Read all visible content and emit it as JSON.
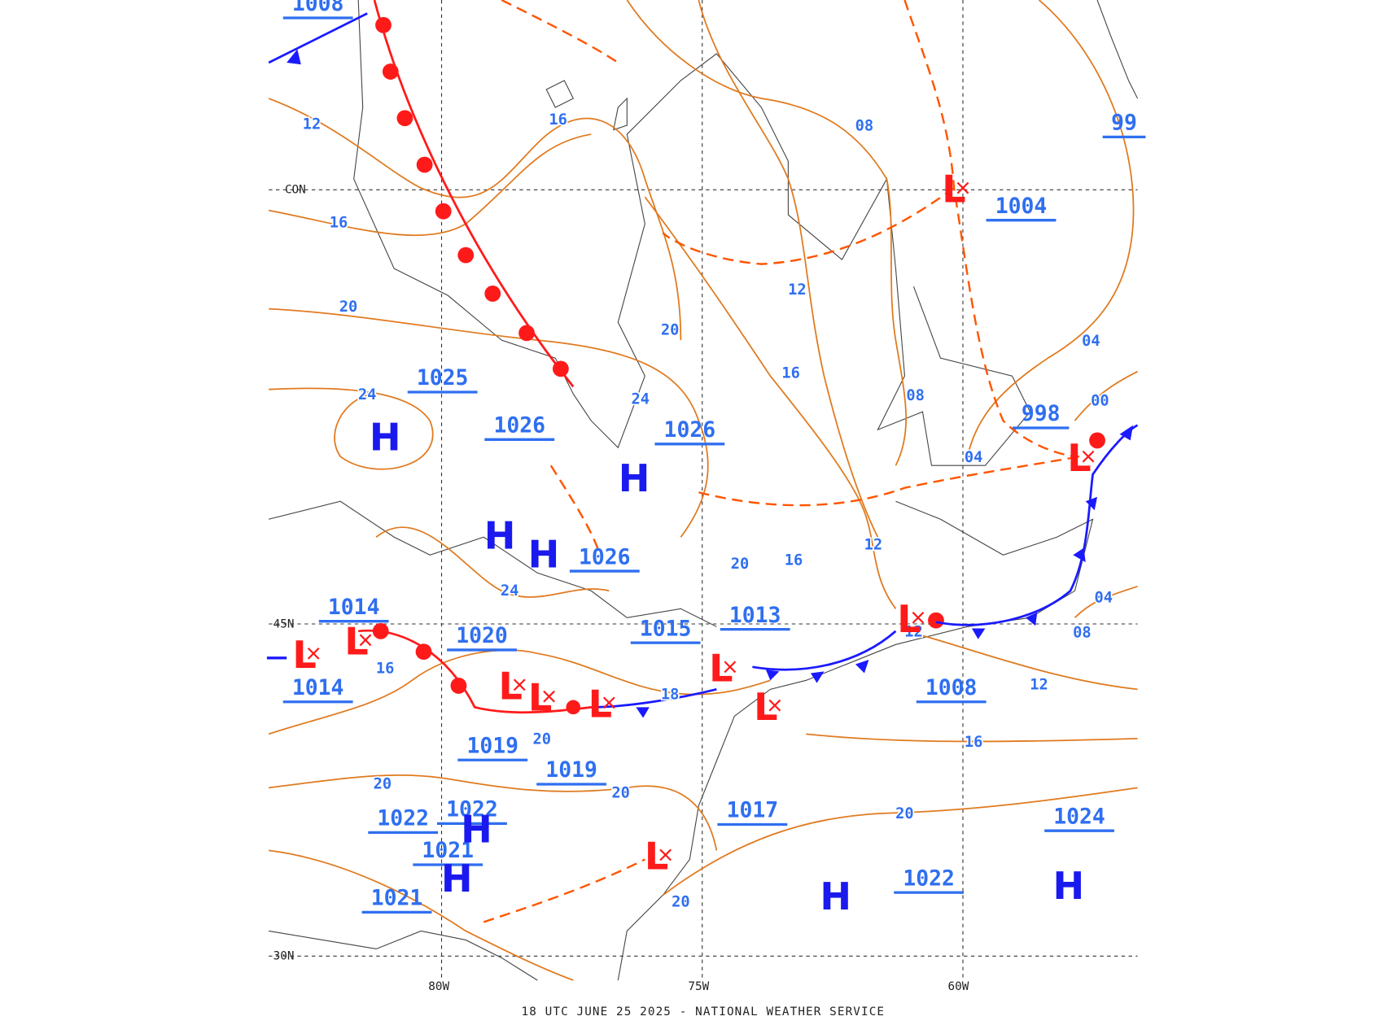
{
  "map": {
    "pressure_labels": [
      "1008",
      "1004",
      "998",
      "1025",
      "1026",
      "1026",
      "1026",
      "1014",
      "1014",
      "1020",
      "1015",
      "1013",
      "1008",
      "1019",
      "1019",
      "1022",
      "1022",
      "1021",
      "1021",
      "1017",
      "1024",
      "1022",
      "99"
    ],
    "isobar_labels": [
      "12",
      "16",
      "16",
      "20",
      "24",
      "08",
      "12",
      "20",
      "24",
      "16",
      "08",
      "04",
      "00",
      "04",
      "12",
      "16",
      "20",
      "24",
      "16",
      "18",
      "12",
      "08",
      "04",
      "12",
      "16",
      "20",
      "20",
      "20",
      "20",
      "20"
    ],
    "highs": [
      "H",
      "H",
      "H",
      "H",
      "H",
      "H",
      "H",
      "H"
    ],
    "lows": [
      "L",
      "L",
      "L",
      "L",
      "L",
      "L",
      "L",
      "L",
      "L",
      "L",
      "L"
    ],
    "grid_labels": [
      "CON",
      "45N",
      "30N",
      "80W",
      "75W",
      "60W"
    ],
    "caption": "18 UTC JUNE 25 2025 - NATIONAL WEATHER SERVICE"
  }
}
